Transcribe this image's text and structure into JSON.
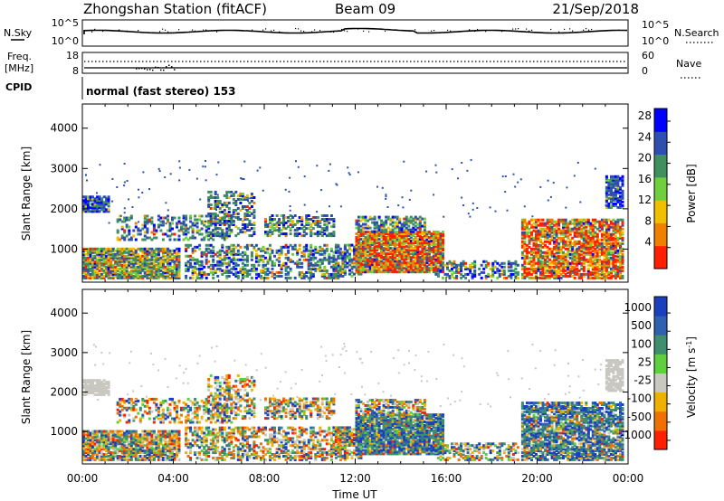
{
  "header": {
    "station": "Zhongshan Station (fitACF)",
    "beam": "Beam 09",
    "date": "21/Sep/2018"
  },
  "status_panels": {
    "nsky_label": "N.Sky",
    "nsky_ticks": [
      "10^5",
      "10^0"
    ],
    "nsearch_label": "N.Search",
    "nsearch_ticks": [
      "10^5",
      "10^0"
    ],
    "freq_label": "Freq.",
    "freq_unit": "[MHz]",
    "freq_ticks": [
      "18",
      "8"
    ],
    "nave_label": "Nave",
    "nave_ticks": [
      "60",
      "0"
    ],
    "cpid_label": "CPID",
    "cpid_value": "normal (fast stereo) 153"
  },
  "chart_data": [
    {
      "type": "heatmap",
      "xlabel": "Time UT",
      "ylabel": "Slant Range [km]",
      "x_tick_labels": [
        "00:00",
        "04:00",
        "08:00",
        "12:00",
        "16:00",
        "20:00",
        "00:00"
      ],
      "xlim": [
        0,
        24
      ],
      "y_ticks": [
        1000,
        2000,
        3000,
        4000
      ],
      "ylim": [
        180,
        4600
      ],
      "colorbar": {
        "label": "Power [dB]",
        "ticks": [
          "4",
          "8",
          "12",
          "16",
          "20",
          "24",
          "28"
        ],
        "range": [
          0,
          30
        ],
        "colors": [
          "#0000ff",
          "#2f4fb0",
          "#3f8f5f",
          "#6fcf3f",
          "#f0c000",
          "#f08000",
          "#ff2000"
        ]
      }
    },
    {
      "type": "heatmap",
      "xlabel": "Time UT",
      "ylabel": "Slant Range [km]",
      "x_tick_labels": [
        "00:00",
        "04:00",
        "08:00",
        "12:00",
        "16:00",
        "20:00",
        "00:00"
      ],
      "xlim": [
        0,
        24
      ],
      "y_ticks": [
        1000,
        2000,
        3000,
        4000
      ],
      "ylim": [
        180,
        4600
      ],
      "colorbar": {
        "label": "Velocity [m s",
        "label_sup": "-1",
        "label_end": "]",
        "ticks": [
          "1000",
          "500",
          "100",
          "25",
          "-25",
          "-100",
          "-500",
          "-1000"
        ],
        "colors": [
          "#1a3fc0",
          "#3060b0",
          "#3f8f6f",
          "#5fcf3f",
          "#c8c8c0",
          "#f0b000",
          "#f07000",
          "#ff2000"
        ]
      }
    }
  ]
}
